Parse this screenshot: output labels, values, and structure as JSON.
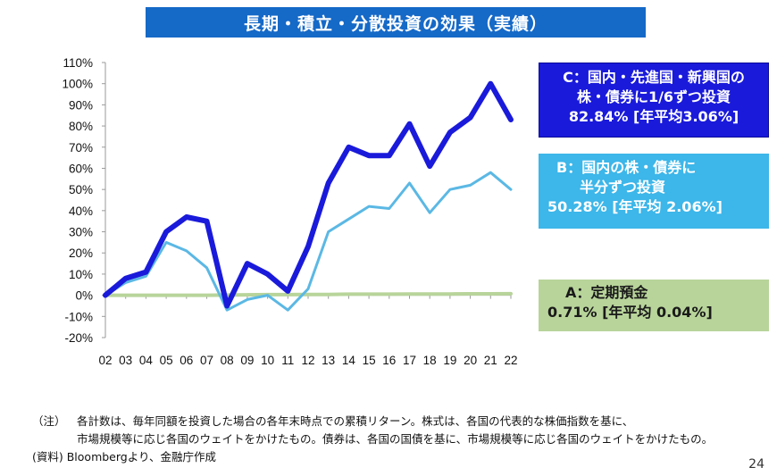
{
  "header": {
    "title": "長期・積立・分散投資の効果（実績）"
  },
  "legend": {
    "c": {
      "line1": "C：国内・先進国・新興国の",
      "line2": "株・債券に1/6ずつ投資",
      "line3": "82.84%  [年平均3.06%]",
      "color": "#1a1adb"
    },
    "b": {
      "line1": "B：国内の株・債券に",
      "line2": "半分ずつ投資",
      "line3": "50.28% [年平均 2.06%]",
      "color": "#3db6e9"
    },
    "a": {
      "line1": "A：定期預金",
      "line2": "0.71%  [年平均 0.04%]",
      "color": "#b8d49a"
    }
  },
  "notes": {
    "note_tag": "（注）",
    "note_line1": "各計数は、毎年同額を投資した場合の各年末時点での累積リターン。株式は、各国の代表的な株価指数を基に、",
    "note_line2": "市場規模等に応じ各国のウェイトをかけたもの。債券は、各国の国債を基に、市場規模等に応じ各国のウェイトをかけたもの。",
    "source": "(資料) Bloombergより、金融庁作成"
  },
  "page_number": "24",
  "chart_data": {
    "type": "line",
    "title": "長期・積立・分散投資の効果（実績）",
    "x": [
      "02",
      "03",
      "04",
      "05",
      "06",
      "07",
      "08",
      "09",
      "10",
      "11",
      "12",
      "13",
      "14",
      "15",
      "16",
      "17",
      "18",
      "19",
      "20",
      "21",
      "22"
    ],
    "y_ticks": [
      "110%",
      "100%",
      "90%",
      "80%",
      "70%",
      "60%",
      "50%",
      "40%",
      "30%",
      "20%",
      "10%",
      "0%",
      "-10%",
      "-20%"
    ],
    "ylim": [
      -20,
      110
    ],
    "grid": false,
    "legend_position": "right",
    "series": [
      {
        "name": "C：国内・先進国・新興国の株・債券に1/6ずつ投資",
        "color": "#1a1adb",
        "values": [
          0,
          8,
          11,
          30,
          37,
          35,
          -5,
          15,
          10,
          2,
          23,
          53,
          70,
          66,
          66,
          81,
          61,
          77,
          84,
          100,
          83
        ]
      },
      {
        "name": "B：国内の株・債券に半分ずつ投資",
        "color": "#5bb8e4",
        "values": [
          0,
          6,
          9,
          25,
          21,
          13,
          -7,
          -2,
          0,
          -7,
          3,
          30,
          36,
          42,
          41,
          53,
          39,
          50,
          52,
          58,
          50
        ]
      },
      {
        "name": "A：定期預金",
        "color": "#b8d49a",
        "values": [
          0,
          0,
          0,
          0,
          0,
          0,
          0.1,
          0.2,
          0.3,
          0.3,
          0.4,
          0.4,
          0.5,
          0.5,
          0.5,
          0.6,
          0.6,
          0.6,
          0.7,
          0.7,
          0.71
        ]
      }
    ]
  }
}
